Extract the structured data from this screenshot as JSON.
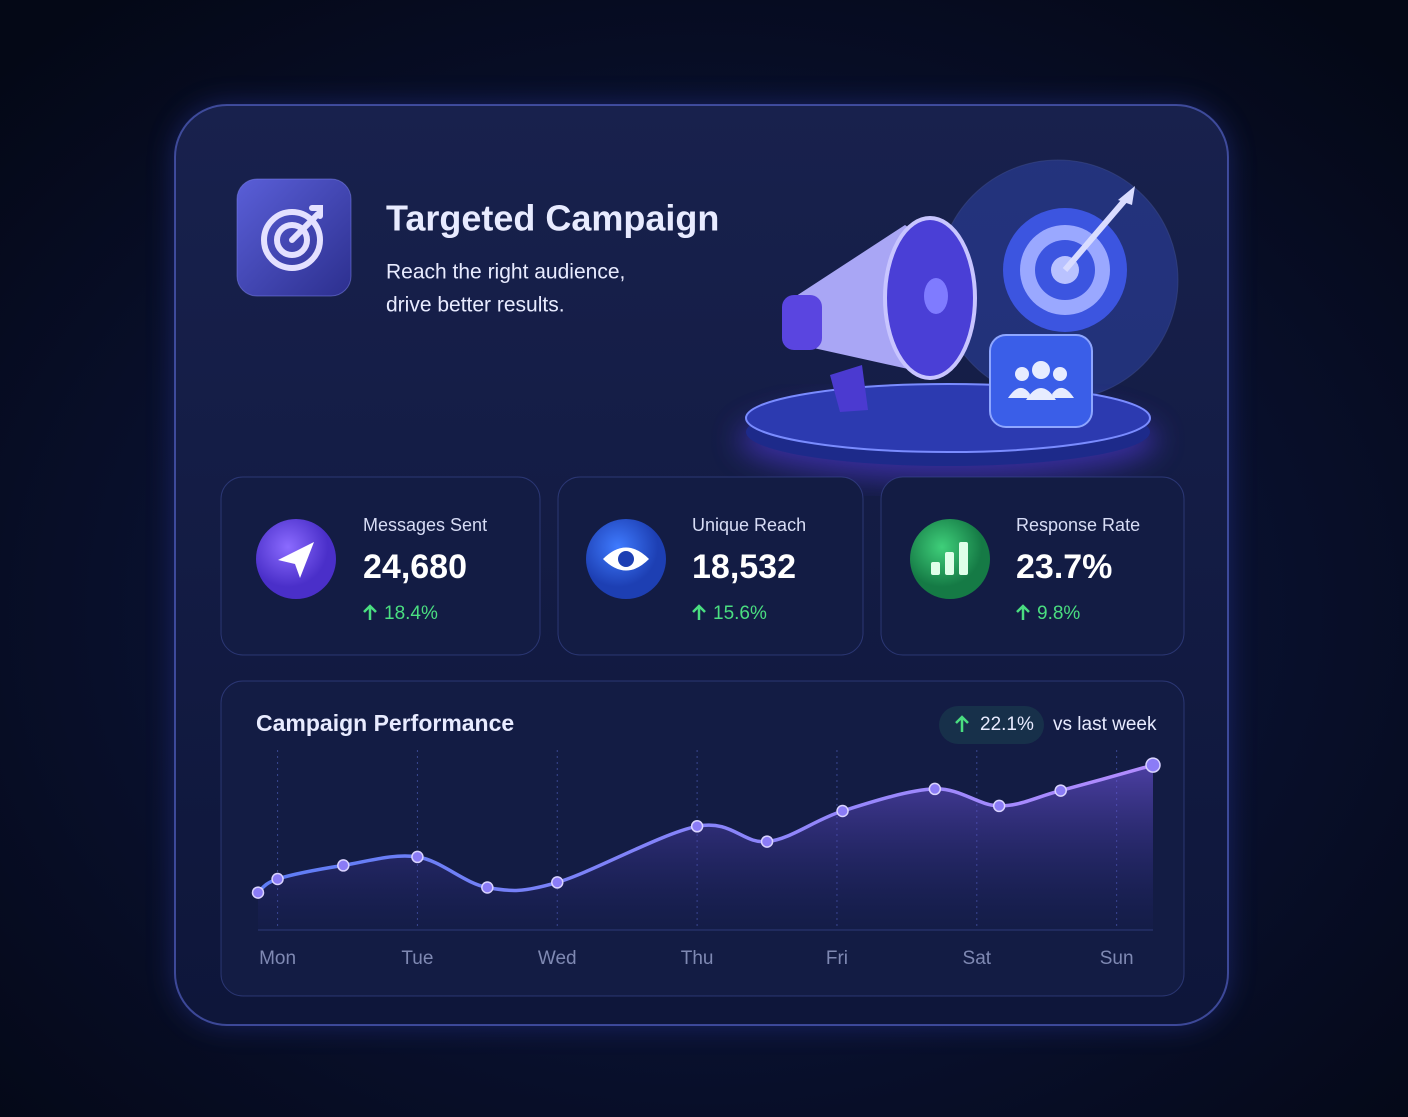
{
  "header": {
    "title": "Targeted Campaign",
    "subtitle_lines": [
      "Reach the right audience,",
      "drive better results."
    ]
  },
  "stats": [
    {
      "label": "Messages Sent",
      "value": "24,680",
      "change": "18.4%"
    },
    {
      "label": "Unique Reach",
      "value": "18,532",
      "change": "15.6%"
    },
    {
      "label": "Response Rate",
      "value": "23.7%",
      "change": "9.8%"
    }
  ],
  "chart_data": {
    "type": "line",
    "title": "Campaign Performance",
    "badge": "22.1%",
    "badge_note": "vs last week",
    "x": [
      -0.14,
      0,
      0.47,
      1,
      1.5,
      2,
      3,
      3.5,
      4.04,
      4.7,
      5.16,
      5.6,
      6.26
    ],
    "values": [
      22,
      30,
      38,
      43,
      25,
      28,
      61,
      52,
      70,
      83,
      73,
      82,
      97
    ],
    "color": "#8b7cf6",
    "xlim": [
      -0.14,
      6.26
    ],
    "xticks": [
      {
        "value": 0,
        "label": "Mon"
      },
      {
        "value": 1,
        "label": "Tue"
      },
      {
        "value": 2,
        "label": "Wed"
      },
      {
        "value": 3,
        "label": "Thu"
      },
      {
        "value": 4,
        "label": "Fri"
      },
      {
        "value": 5,
        "label": "Sat"
      },
      {
        "value": 6,
        "label": "Sun"
      }
    ],
    "ylim": [
      0,
      100
    ],
    "grid": true
  }
}
